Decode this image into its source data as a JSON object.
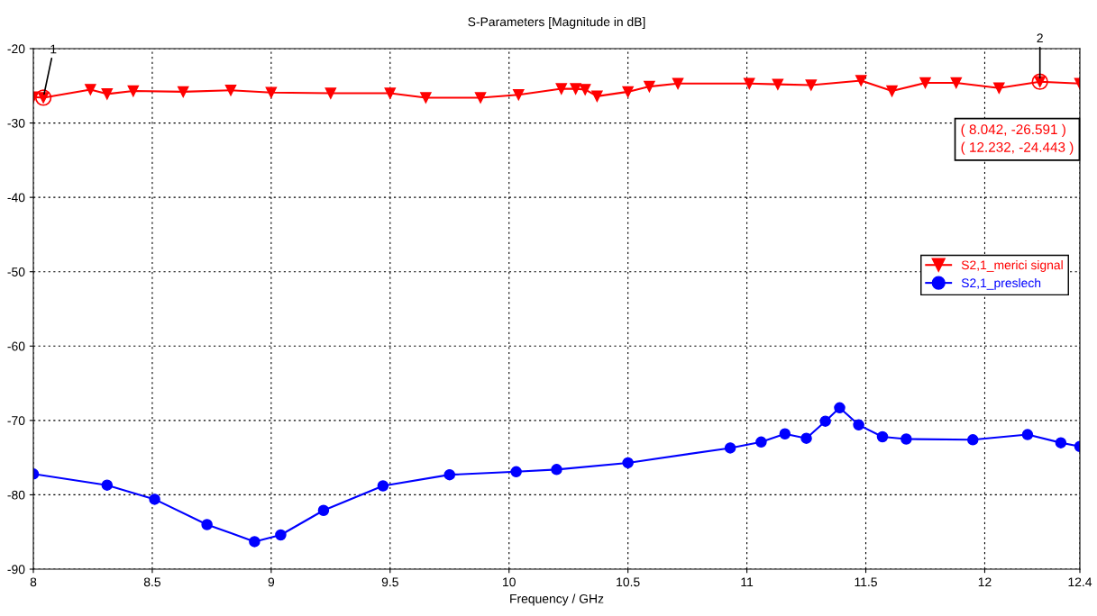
{
  "chart_data": {
    "type": "line",
    "title": "S-Parameters [Magnitude in dB]",
    "xlabel": "Frequency / GHz",
    "xlim": [
      8,
      12.4
    ],
    "xticks": [
      8,
      8.5,
      9,
      9.5,
      10,
      10.5,
      11,
      11.5,
      12,
      12.4
    ],
    "ylim": [
      -90,
      -20
    ],
    "yticks": [
      -90,
      -80,
      -70,
      -60,
      -50,
      -40,
      -30,
      -20
    ],
    "grid": true,
    "legend": "right",
    "series": [
      {
        "name": "S2,1_merici signal",
        "color": "#ff0000",
        "marker": "triangle",
        "x": [
          8.0,
          8.042,
          8.24,
          8.31,
          8.42,
          8.63,
          8.83,
          9.0,
          9.25,
          9.5,
          9.65,
          9.88,
          10.04,
          10.22,
          10.28,
          10.32,
          10.37,
          10.5,
          10.59,
          10.71,
          11.01,
          11.13,
          11.27,
          11.48,
          11.61,
          11.75,
          11.88,
          12.06,
          12.232,
          12.4
        ],
        "values": [
          -26.5,
          -26.591,
          -25.5,
          -26.1,
          -25.7,
          -25.8,
          -25.6,
          -25.9,
          -26.0,
          -26.0,
          -26.6,
          -26.6,
          -26.2,
          -25.4,
          -25.4,
          -25.5,
          -26.4,
          -25.8,
          -25.1,
          -24.7,
          -24.7,
          -24.8,
          -24.9,
          -24.3,
          -25.7,
          -24.6,
          -24.6,
          -25.3,
          -24.443,
          -24.7
        ]
      },
      {
        "name": "S2,1_preslech",
        "color": "#0000ff",
        "marker": "circle",
        "x": [
          8.0,
          8.31,
          8.51,
          8.73,
          8.93,
          9.04,
          9.22,
          9.47,
          9.75,
          10.03,
          10.2,
          10.5,
          10.93,
          11.06,
          11.16,
          11.25,
          11.33,
          11.39,
          11.47,
          11.57,
          11.67,
          11.95,
          12.18,
          12.32,
          12.4
        ],
        "values": [
          -77.2,
          -78.7,
          -80.6,
          -84.0,
          -86.3,
          -85.4,
          -82.1,
          -78.8,
          -77.3,
          -76.9,
          -76.6,
          -75.7,
          -73.7,
          -72.9,
          -71.8,
          -72.4,
          -70.1,
          -68.3,
          -70.6,
          -72.2,
          -72.5,
          -72.6,
          -71.9,
          -73.0,
          -73.5
        ]
      }
    ],
    "annotations": [
      {
        "text": "1",
        "x": 8.042,
        "y": -26.591
      },
      {
        "text": "2",
        "x": 12.232,
        "y": -24.443
      },
      "( 8.042, -26.591 )",
      "( 12.232, -24.443 )"
    ]
  }
}
